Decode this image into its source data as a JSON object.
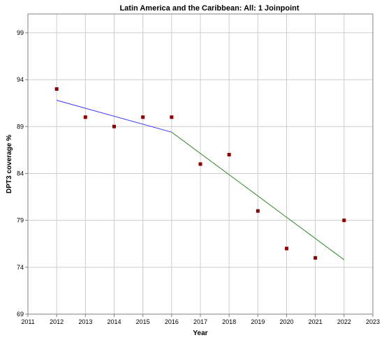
{
  "chart_data": {
    "type": "scatter",
    "title": "Latin America and the Caribbean: All: 1 Joinpoint",
    "xlabel": "Year",
    "ylabel": "DPT3 coverage %",
    "xlim": [
      2011,
      2023
    ],
    "ylim": [
      69,
      101
    ],
    "x_ticks": [
      "2011",
      "2012",
      "2013",
      "2014",
      "2015",
      "2016",
      "2017",
      "2018",
      "2019",
      "2020",
      "2021",
      "2022",
      "2023"
    ],
    "y_ticks": [
      "69",
      "74",
      "79",
      "84",
      "89",
      "94",
      "99"
    ],
    "grid": true,
    "series": [
      {
        "kind": "observed",
        "color": "#8b0000",
        "x": [
          2012,
          2013,
          2014,
          2015,
          2016,
          2017,
          2018,
          2019,
          2020,
          2021,
          2022
        ],
        "y": [
          93,
          90,
          89,
          90,
          90,
          85,
          86,
          80,
          76,
          75,
          79
        ]
      },
      {
        "kind": "segment-1",
        "color": "#3333ff",
        "x": [
          2012,
          2016
        ],
        "y": [
          91.8,
          88.4
        ]
      },
      {
        "kind": "segment-2",
        "color": "#2e8b2e",
        "x": [
          2016,
          2022
        ],
        "y": [
          88.4,
          74.8
        ]
      }
    ]
  }
}
